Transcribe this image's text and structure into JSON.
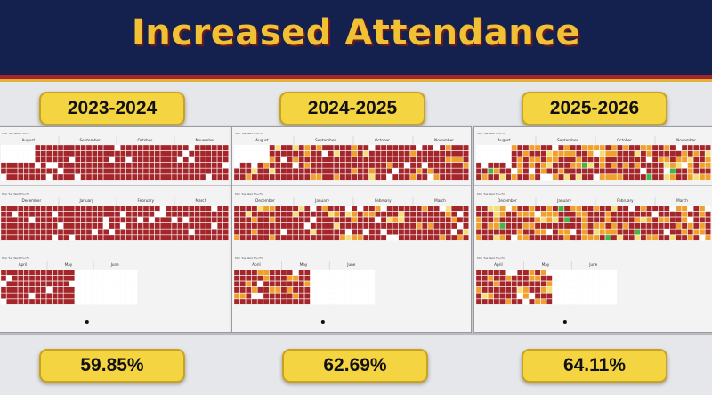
{
  "header": {
    "title": "Increased Attendance"
  },
  "colors": {
    "header_bg": "#14214e",
    "title": "#f0c035",
    "pill": "#f5d442",
    "absent_red": "#a5262a",
    "partial_orange": "#f0a02c",
    "light_yellow": "#f3e07a",
    "green": "#45b548",
    "no_school_white": "#ffffff"
  },
  "panels": [
    {
      "year": "2023-2024",
      "percent": "59.85%",
      "day_headers": [
        "Mon",
        "Tue",
        "Wed",
        "Thu",
        "Fri"
      ],
      "rows": [
        {
          "months": [
            "August",
            "September",
            "October",
            "November"
          ]
        },
        {
          "months": [
            "December",
            "January",
            "February",
            "March"
          ]
        },
        {
          "months": [
            "April",
            "May",
            "June"
          ]
        }
      ]
    },
    {
      "year": "2024-2025",
      "percent": "62.69%",
      "day_headers": [
        "Mon",
        "Tue",
        "Wed",
        "Thu",
        "Fri"
      ],
      "rows": [
        {
          "months": [
            "August",
            "September",
            "October",
            "November"
          ]
        },
        {
          "months": [
            "December",
            "January",
            "February",
            "March"
          ]
        },
        {
          "months": [
            "April",
            "May",
            "June"
          ]
        }
      ]
    },
    {
      "year": "2025-2026",
      "percent": "64.11%",
      "day_headers": [
        "Mon",
        "Tue",
        "Wed",
        "Thu",
        "Fri"
      ],
      "rows": [
        {
          "months": [
            "August",
            "September",
            "October",
            "November"
          ]
        },
        {
          "months": [
            "December",
            "January",
            "February",
            "March"
          ]
        },
        {
          "months": [
            "April",
            "May",
            "June"
          ]
        }
      ]
    }
  ]
}
